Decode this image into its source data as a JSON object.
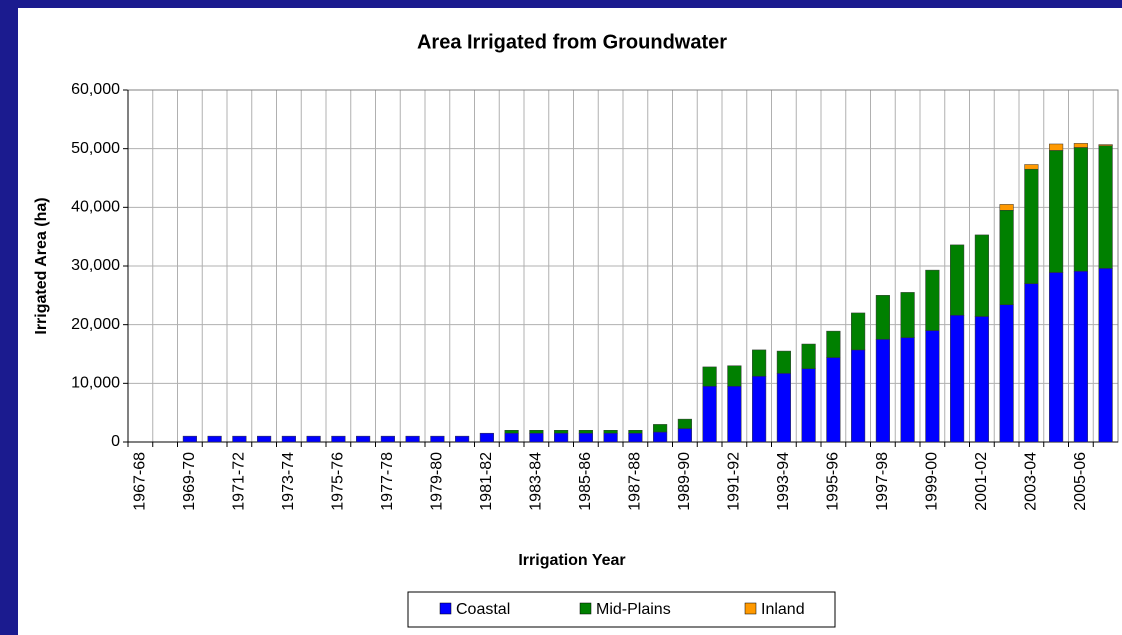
{
  "chart_data": {
    "type": "stacked_bar",
    "title": "Area Irrigated from Groundwater",
    "x_label": "Irrigation Year",
    "y_label": "Irrigated Area (ha)",
    "categories": [
      "1967-68",
      null,
      "1969-70",
      null,
      "1971-72",
      null,
      "1973-74",
      null,
      "1975-76",
      null,
      "1977-78",
      null,
      "1979-80",
      null,
      "1981-82",
      null,
      "1983-84",
      null,
      "1985-86",
      null,
      "1987-88",
      null,
      "1989-90",
      null,
      "1991-92",
      null,
      "1993-94",
      null,
      "1995-96",
      null,
      "1997-98",
      null,
      "1999-00",
      null,
      "2001-02",
      null,
      "2003-04",
      null,
      "2005-06",
      null
    ],
    "series": [
      {
        "name": "Coastal",
        "color": "#0000ff",
        "values": [
          0,
          0,
          1000,
          1000,
          1000,
          1000,
          1000,
          1000,
          1000,
          1000,
          1000,
          1000,
          1000,
          1000,
          1500,
          1500,
          1500,
          1500,
          1500,
          1500,
          1500,
          1700,
          2300,
          9500,
          9500,
          11200,
          11700,
          12500,
          14400,
          15700,
          17500,
          17800,
          19000,
          21600,
          21400,
          23400,
          27000,
          28900,
          29100,
          29600
        ]
      },
      {
        "name": "Mid-Plains",
        "color": "#008000",
        "values": [
          0,
          0,
          0,
          0,
          0,
          0,
          0,
          0,
          0,
          0,
          0,
          0,
          0,
          0,
          0,
          500,
          500,
          500,
          500,
          500,
          500,
          1300,
          1600,
          3300,
          3500,
          4500,
          3800,
          4200,
          4500,
          6300,
          7500,
          7700,
          10300,
          12000,
          13900,
          16100,
          19500,
          20800,
          21100,
          20900
        ]
      },
      {
        "name": "Inland",
        "color": "#ff9900",
        "values": [
          0,
          0,
          0,
          0,
          0,
          0,
          0,
          0,
          0,
          0,
          0,
          0,
          0,
          0,
          0,
          0,
          0,
          0,
          0,
          0,
          0,
          0,
          0,
          0,
          0,
          0,
          0,
          0,
          0,
          0,
          0,
          0,
          0,
          0,
          0,
          1000,
          800,
          1100,
          700,
          200
        ]
      }
    ],
    "ylim": [
      0,
      60000
    ],
    "yticks": [
      0,
      {
        "value": 10000,
        "label": "10,000"
      },
      {
        "value": 20000,
        "label": "20,000"
      },
      {
        "value": 30000,
        "label": "30,000"
      },
      {
        "value": 40000,
        "label": "40,000"
      },
      {
        "value": 50000,
        "label": "50,000"
      },
      {
        "value": 60000,
        "label": "60,000"
      }
    ],
    "grid": true,
    "legend": "bottom"
  }
}
